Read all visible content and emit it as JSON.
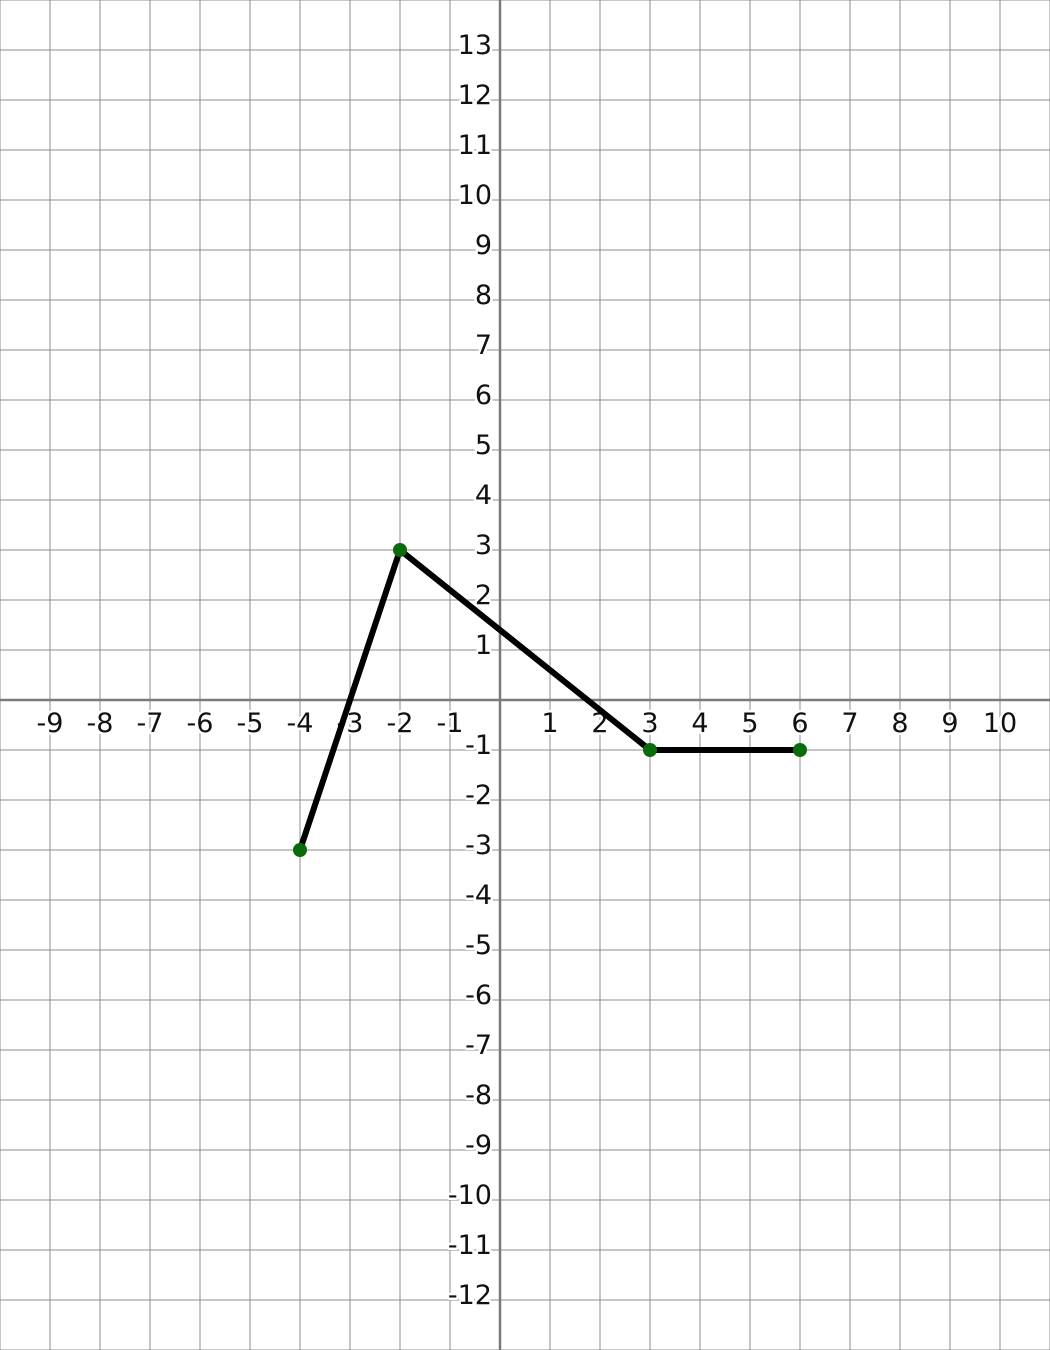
{
  "chart_data": {
    "type": "line",
    "title": "",
    "xlabel": "",
    "ylabel": "",
    "xlim": [
      -10,
      11
    ],
    "ylim": [
      -13,
      14
    ],
    "grid": true,
    "x_ticks": [
      -9,
      -8,
      -7,
      -6,
      -5,
      -4,
      -3,
      -2,
      -1,
      1,
      2,
      3,
      4,
      5,
      6,
      7,
      8,
      9,
      10
    ],
    "y_ticks": [
      13,
      12,
      11,
      10,
      9,
      8,
      7,
      6,
      5,
      4,
      3,
      2,
      1,
      -1,
      -2,
      -3,
      -4,
      -5,
      -6,
      -7,
      -8,
      -9,
      -10,
      -11,
      -12
    ],
    "series": [
      {
        "x": [
          -4,
          -2,
          3,
          6
        ],
        "y": [
          -3,
          3,
          -1,
          -1
        ],
        "line_color": "#000000",
        "marker_color": "#0a6b0a"
      }
    ]
  },
  "colors": {
    "background": "#ffffff",
    "grid": "#8c8c8c",
    "axis": "#7a7a7a"
  }
}
